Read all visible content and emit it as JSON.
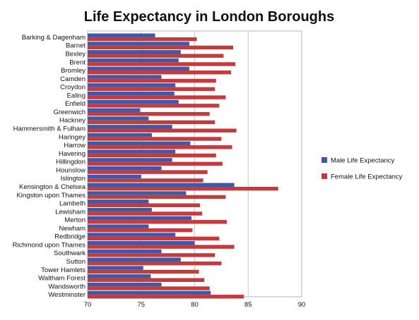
{
  "chart_data": {
    "type": "bar",
    "orientation": "horizontal",
    "title": "Life Expectancy in London Boroughs",
    "xlabel": "",
    "ylabel": "",
    "xlim": [
      70,
      90
    ],
    "xticks": [
      "70",
      "75",
      "80",
      "85",
      "90"
    ],
    "grid": "vertical",
    "legend_position": "right",
    "categories": [
      "Barking & Dagenham",
      "Barnet",
      "Bexley",
      "Brent",
      "Bromley",
      "Camden",
      "Croydon",
      "Ealing",
      "Enfield",
      "Greenwich",
      "Hackney",
      "Hammersmith & Fulham",
      "Haringey",
      "Harrow",
      "Havering",
      "Hillingdon",
      "Hounslow",
      "Islington",
      "Kensington & Chelsea",
      "Kingston upon Thames",
      "Lambeth",
      "Lewisham",
      "Merton",
      "Newham",
      "Redbridge",
      "Richmond upon Thames",
      "Southwark",
      "Sutton",
      "Tower Hamlets",
      "Waltham Forest",
      "Wandsworth",
      "Westminster"
    ],
    "series": [
      {
        "name": "Male Life Expectancy",
        "color": "#3d59a8",
        "values": [
          76.3,
          79.5,
          78.7,
          78.5,
          79.5,
          76.9,
          78.2,
          78.1,
          78.5,
          74.9,
          75.7,
          77.9,
          76.0,
          79.6,
          78.2,
          77.9,
          76.9,
          75.0,
          83.7,
          79.2,
          75.7,
          76.0,
          79.7,
          75.7,
          78.2,
          80.0,
          76.9,
          78.7,
          75.2,
          75.9,
          76.9,
          81.5
        ]
      },
      {
        "name": "Female Life Expectancy",
        "color": "#c53a3d",
        "values": [
          80.2,
          83.6,
          82.7,
          83.8,
          83.4,
          82.0,
          81.9,
          82.9,
          82.3,
          81.4,
          81.9,
          83.9,
          82.5,
          83.5,
          82.0,
          82.6,
          81.2,
          80.8,
          87.8,
          82.9,
          80.5,
          80.7,
          83.0,
          79.8,
          82.3,
          83.7,
          81.9,
          82.5,
          80.4,
          80.9,
          81.4,
          84.6
        ]
      }
    ]
  }
}
